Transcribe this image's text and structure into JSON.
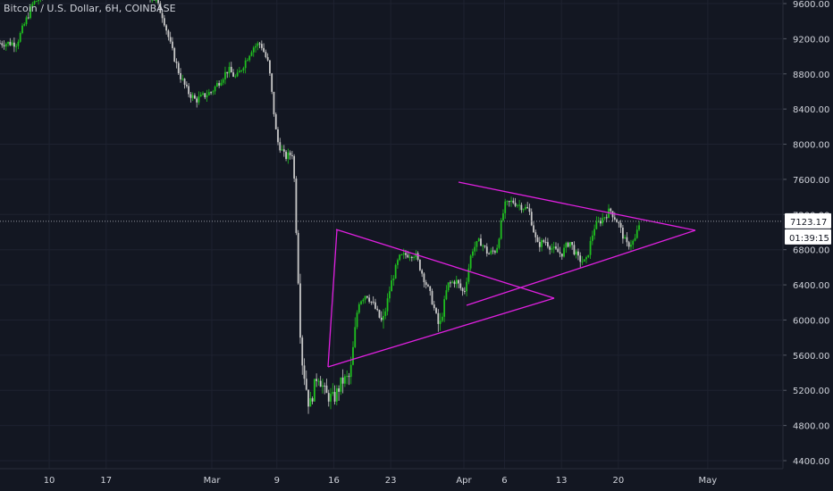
{
  "symbol": {
    "title": "Bitcoin / U.S. Dollar, 6H, COINBASE"
  },
  "colors": {
    "background": "#131722",
    "grid": "#1e2230",
    "axis_text": "#d1d4dc",
    "up_candle": "#1fbf1f",
    "down_candle": "#c8c8c8",
    "trendline": "#e020e0",
    "price_line": "#9598a1"
  },
  "price_axis": {
    "ticks": [
      "9600.00",
      "9200.00",
      "8800.00",
      "8400.00",
      "8000.00",
      "7600.00",
      "7200.00",
      "6800.00",
      "6400.00",
      "6000.00",
      "5600.00",
      "5200.00",
      "4800.00",
      "4400.00"
    ],
    "last_price": "7123.17",
    "countdown": "01:39:15"
  },
  "time_axis": {
    "ticks": [
      "10",
      "17",
      "Mar",
      "9",
      "16",
      "23",
      "Apr",
      "6",
      "13",
      "20",
      "May"
    ]
  },
  "chart_data": {
    "type": "candlestick",
    "title": "Bitcoin / U.S. Dollar, 6H, COINBASE",
    "xlabel": "",
    "ylabel": "",
    "ylim": [
      4400,
      9700
    ],
    "x_ticks": [
      "10",
      "17",
      "Mar",
      "9",
      "16",
      "23",
      "Apr",
      "6",
      "13",
      "20",
      "May"
    ],
    "y_ticks": [
      9600,
      9200,
      8800,
      8400,
      8000,
      7600,
      7200,
      6800,
      6400,
      6000,
      5600,
      5200,
      4800,
      4400
    ],
    "last_price": 7123.17,
    "close_path": [
      [
        "2020-02-06",
        9150
      ],
      [
        "2020-02-08",
        9600
      ],
      [
        "2020-02-10",
        9750
      ],
      [
        "2020-02-13",
        9800
      ],
      [
        "2020-02-15",
        9950
      ],
      [
        "2020-02-17",
        9700
      ],
      [
        "2020-02-19",
        10000
      ],
      [
        "2020-02-21",
        9750
      ],
      [
        "2020-02-23",
        9650
      ],
      [
        "2020-02-24",
        9450
      ],
      [
        "2020-02-25",
        9100
      ],
      [
        "2020-02-26",
        8800
      ],
      [
        "2020-02-27",
        8600
      ],
      [
        "2020-02-28",
        8500
      ],
      [
        "2020-03-01",
        8600
      ],
      [
        "2020-03-03",
        8850
      ],
      [
        "2020-03-04",
        8750
      ],
      [
        "2020-03-06",
        9100
      ],
      [
        "2020-03-07",
        9150
      ],
      [
        "2020-03-08",
        8900
      ],
      [
        "2020-03-09",
        8050
      ],
      [
        "2020-03-10",
        7850
      ],
      [
        "2020-03-11",
        7900
      ],
      [
        "2020-03-12",
        5600
      ],
      [
        "2020-03-13",
        5000
      ],
      [
        "2020-03-14",
        5400
      ],
      [
        "2020-03-15",
        5150
      ],
      [
        "2020-03-16",
        5100
      ],
      [
        "2020-03-17",
        5300
      ],
      [
        "2020-03-18",
        5350
      ],
      [
        "2020-03-19",
        6200
      ],
      [
        "2020-03-20",
        6300
      ],
      [
        "2020-03-21",
        6150
      ],
      [
        "2020-03-22",
        5950
      ],
      [
        "2020-03-23",
        6400
      ],
      [
        "2020-03-24",
        6700
      ],
      [
        "2020-03-25",
        6750
      ],
      [
        "2020-03-26",
        6750
      ],
      [
        "2020-03-27",
        6500
      ],
      [
        "2020-03-28",
        6250
      ],
      [
        "2020-03-29",
        5900
      ],
      [
        "2020-03-30",
        6400
      ],
      [
        "2020-03-31",
        6450
      ],
      [
        "2020-04-01",
        6300
      ],
      [
        "2020-04-02",
        6800
      ],
      [
        "2020-04-03",
        6900
      ],
      [
        "2020-04-04",
        6750
      ],
      [
        "2020-04-05",
        6800
      ],
      [
        "2020-04-06",
        7300
      ],
      [
        "2020-04-07",
        7350
      ],
      [
        "2020-04-08",
        7300
      ],
      [
        "2020-04-09",
        7250
      ],
      [
        "2020-04-10",
        6850
      ],
      [
        "2020-04-11",
        6900
      ],
      [
        "2020-04-12",
        6800
      ],
      [
        "2020-04-13",
        6750
      ],
      [
        "2020-04-14",
        6900
      ],
      [
        "2020-04-15",
        6700
      ],
      [
        "2020-04-16",
        6650
      ],
      [
        "2020-04-17",
        7050
      ],
      [
        "2020-04-18",
        7150
      ],
      [
        "2020-04-19",
        7250
      ],
      [
        "2020-04-20",
        7100
      ],
      [
        "2020-04-21",
        6850
      ],
      [
        "2020-04-22",
        6900
      ],
      [
        "2020-04-22",
        7123.17
      ]
    ],
    "trendlines": [
      {
        "name": "",
        "points": [
          [
            "2020-03-16",
            5500
          ],
          [
            "2020-03-29",
            6850
          ],
          [
            "2020-04-25",
            7200
          ],
          [
            "2020-05-01",
            7000
          ]
        ]
      },
      {
        "name": "",
        "points": [
          [
            "2020-03-16",
            7000
          ],
          [
            "2020-03-28",
            6800
          ],
          [
            "2020-04-05",
            6250
          ]
        ]
      },
      {
        "name": "",
        "points": [
          [
            "2020-03-16",
            5500
          ],
          [
            "2020-04-05",
            6250
          ]
        ]
      },
      {
        "name": "",
        "points": [
          [
            "2020-04-01",
            6200
          ],
          [
            "2020-05-01",
            7000
          ]
        ]
      },
      {
        "name": "",
        "points": [
          [
            "2020-03-31",
            7550
          ],
          [
            "2020-05-01",
            7000
          ]
        ]
      }
    ],
    "grid": true
  }
}
